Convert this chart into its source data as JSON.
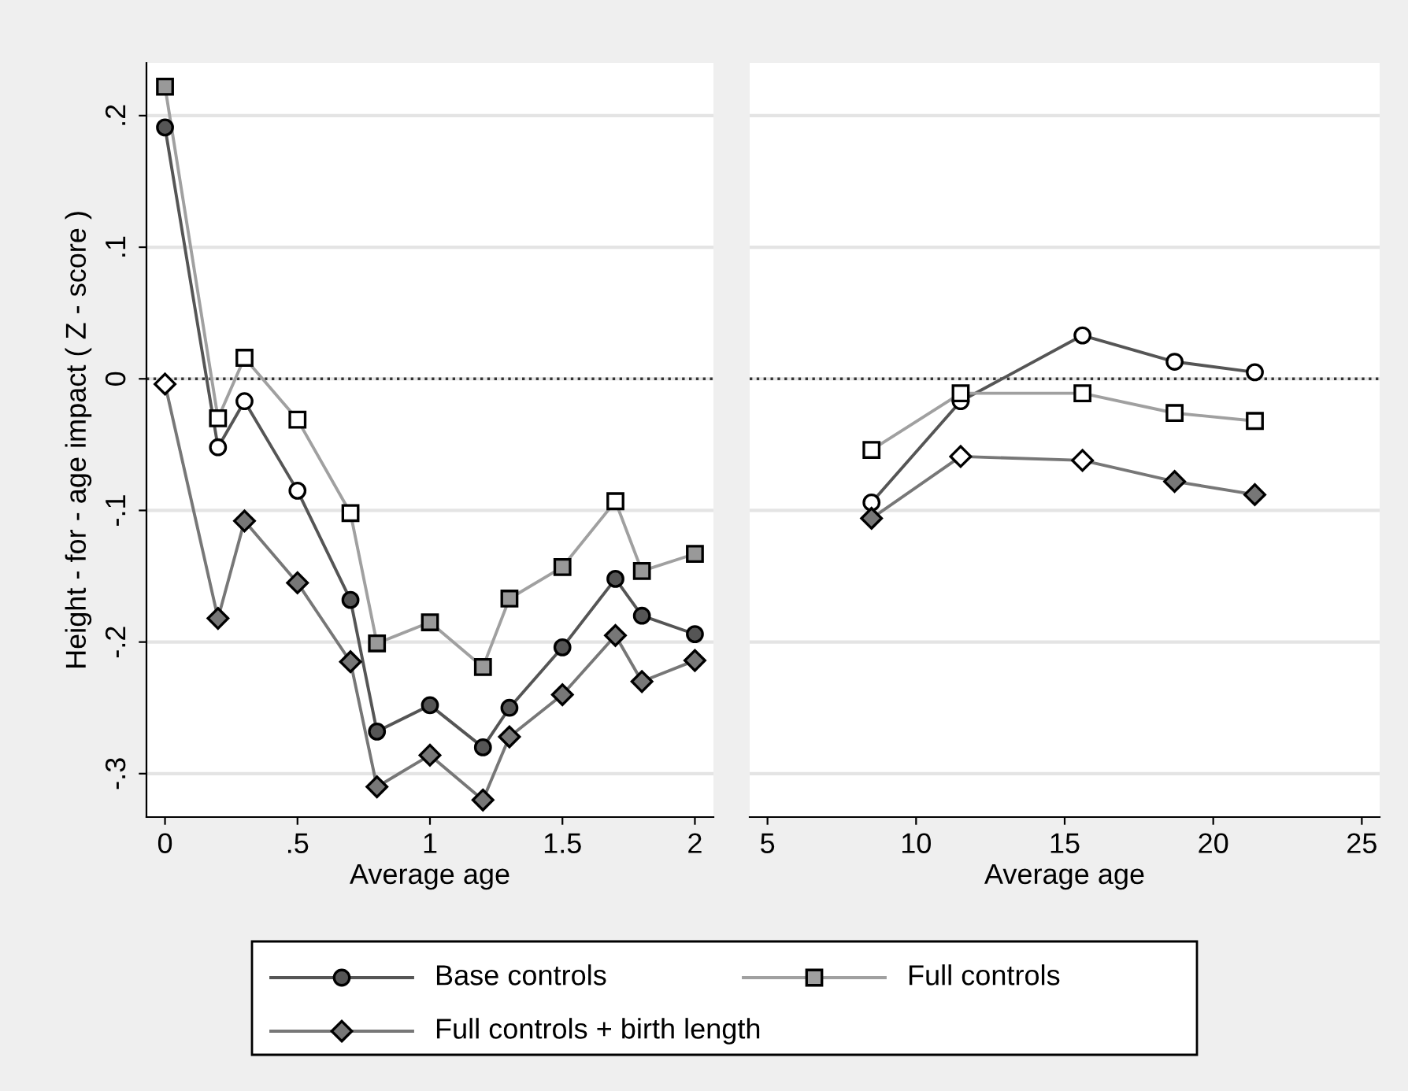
{
  "chart_data": [
    {
      "type": "line",
      "xlabel": "Average age",
      "ylabel": "Height - for - age impact ( Z - score )",
      "xlim": [
        -0.07,
        2.07
      ],
      "ylim": [
        -0.333,
        0.24
      ],
      "xticks": [
        0,
        {
          "value": 0.5,
          "label": ".5"
        },
        1,
        1.5,
        2
      ],
      "yticks": [
        {
          "value": -0.3,
          "label": "-.3"
        },
        {
          "value": -0.2,
          "label": "-.2"
        },
        {
          "value": -0.1,
          "label": "-.1"
        },
        0,
        {
          "value": 0.1,
          "label": ".1"
        },
        {
          "value": 0.2,
          "label": ".2"
        }
      ],
      "grid": "y",
      "legend": "bottom",
      "ref_lines": [
        {
          "axis": "y",
          "value": 0,
          "line_style": "dotted",
          "color": "#333333"
        }
      ],
      "x": [
        0,
        0.2,
        0.3,
        0.5,
        0.7,
        0.8,
        1.0,
        1.2,
        1.3,
        1.5,
        1.7,
        1.8,
        2.0
      ],
      "series": [
        {
          "name": "Base controls",
          "color": "#555555",
          "marker": "circle",
          "values": [
            0.191,
            -0.052,
            -0.017,
            -0.085,
            -0.168,
            -0.268,
            -0.248,
            -0.28,
            -0.25,
            -0.204,
            -0.152,
            -0.18,
            -0.194
          ],
          "colors": [
            "#555555",
            "#ffffff",
            "#ffffff",
            "#ffffff",
            "#555555",
            "#555555",
            "#555555",
            "#555555",
            "#555555",
            "#555555",
            "#555555",
            "#555555",
            "#555555"
          ]
        },
        {
          "name": "Full controls",
          "color": "#a0a0a0",
          "marker": "square",
          "values": [
            0.222,
            -0.03,
            0.016,
            -0.031,
            -0.102,
            -0.201,
            -0.185,
            -0.219,
            -0.167,
            -0.143,
            -0.093,
            -0.146,
            -0.133
          ],
          "colors": [
            "#999999",
            "#ffffff",
            "#ffffff",
            "#ffffff",
            "#ffffff",
            "#999999",
            "#999999",
            "#999999",
            "#999999",
            "#999999",
            "#ffffff",
            "#999999",
            "#999999"
          ]
        },
        {
          "name": "Full controls + birth length",
          "color": "#777777",
          "marker": "diamond",
          "values": [
            -0.004,
            -0.182,
            -0.108,
            -0.155,
            -0.215,
            -0.31,
            -0.286,
            -0.32,
            -0.272,
            -0.24,
            -0.195,
            -0.23,
            -0.214
          ],
          "colors": [
            "#ffffff",
            "#777777",
            "#777777",
            "#777777",
            "#777777",
            "#777777",
            "#777777",
            "#777777",
            "#777777",
            "#777777",
            "#777777",
            "#777777",
            "#777777"
          ]
        }
      ]
    },
    {
      "type": "line",
      "xlabel": "Average age",
      "tick_labels": "x",
      "xlim": [
        4.4,
        25.6
      ],
      "ylim": [
        -0.333,
        0.24
      ],
      "xticks": [
        5,
        10,
        15,
        20,
        25
      ],
      "yticks": [
        {
          "value": -0.3,
          "label": null
        },
        {
          "value": -0.2,
          "label": null
        },
        {
          "value": -0.1,
          "label": null
        },
        {
          "value": 0,
          "label": null
        },
        {
          "value": 0.1,
          "label": null
        },
        {
          "value": 0.2,
          "label": null
        }
      ],
      "grid": "y",
      "ref_lines": [
        {
          "axis": "y",
          "value": 0,
          "line_style": "dotted",
          "color": "#333333"
        }
      ],
      "x": [
        8.5,
        11.5,
        15.6,
        18.7,
        21.4
      ],
      "series": [
        {
          "color": "#555555",
          "marker": "circle",
          "values": [
            -0.094,
            -0.017,
            0.033,
            0.013,
            0.005
          ],
          "colors": [
            "#ffffff",
            "#ffffff",
            "#ffffff",
            "#ffffff",
            "#ffffff"
          ]
        },
        {
          "color": "#a0a0a0",
          "marker": "square",
          "values": [
            -0.054,
            -0.011,
            -0.011,
            -0.026,
            -0.032
          ],
          "colors": [
            "#ffffff",
            "#ffffff",
            "#ffffff",
            "#ffffff",
            "#ffffff"
          ]
        },
        {
          "color": "#777777",
          "marker": "diamond",
          "values": [
            -0.106,
            -0.059,
            -0.062,
            -0.078,
            -0.088
          ],
          "colors": [
            "#777777",
            "#ffffff",
            "#ffffff",
            "#777777",
            "#777777"
          ]
        }
      ]
    }
  ]
}
